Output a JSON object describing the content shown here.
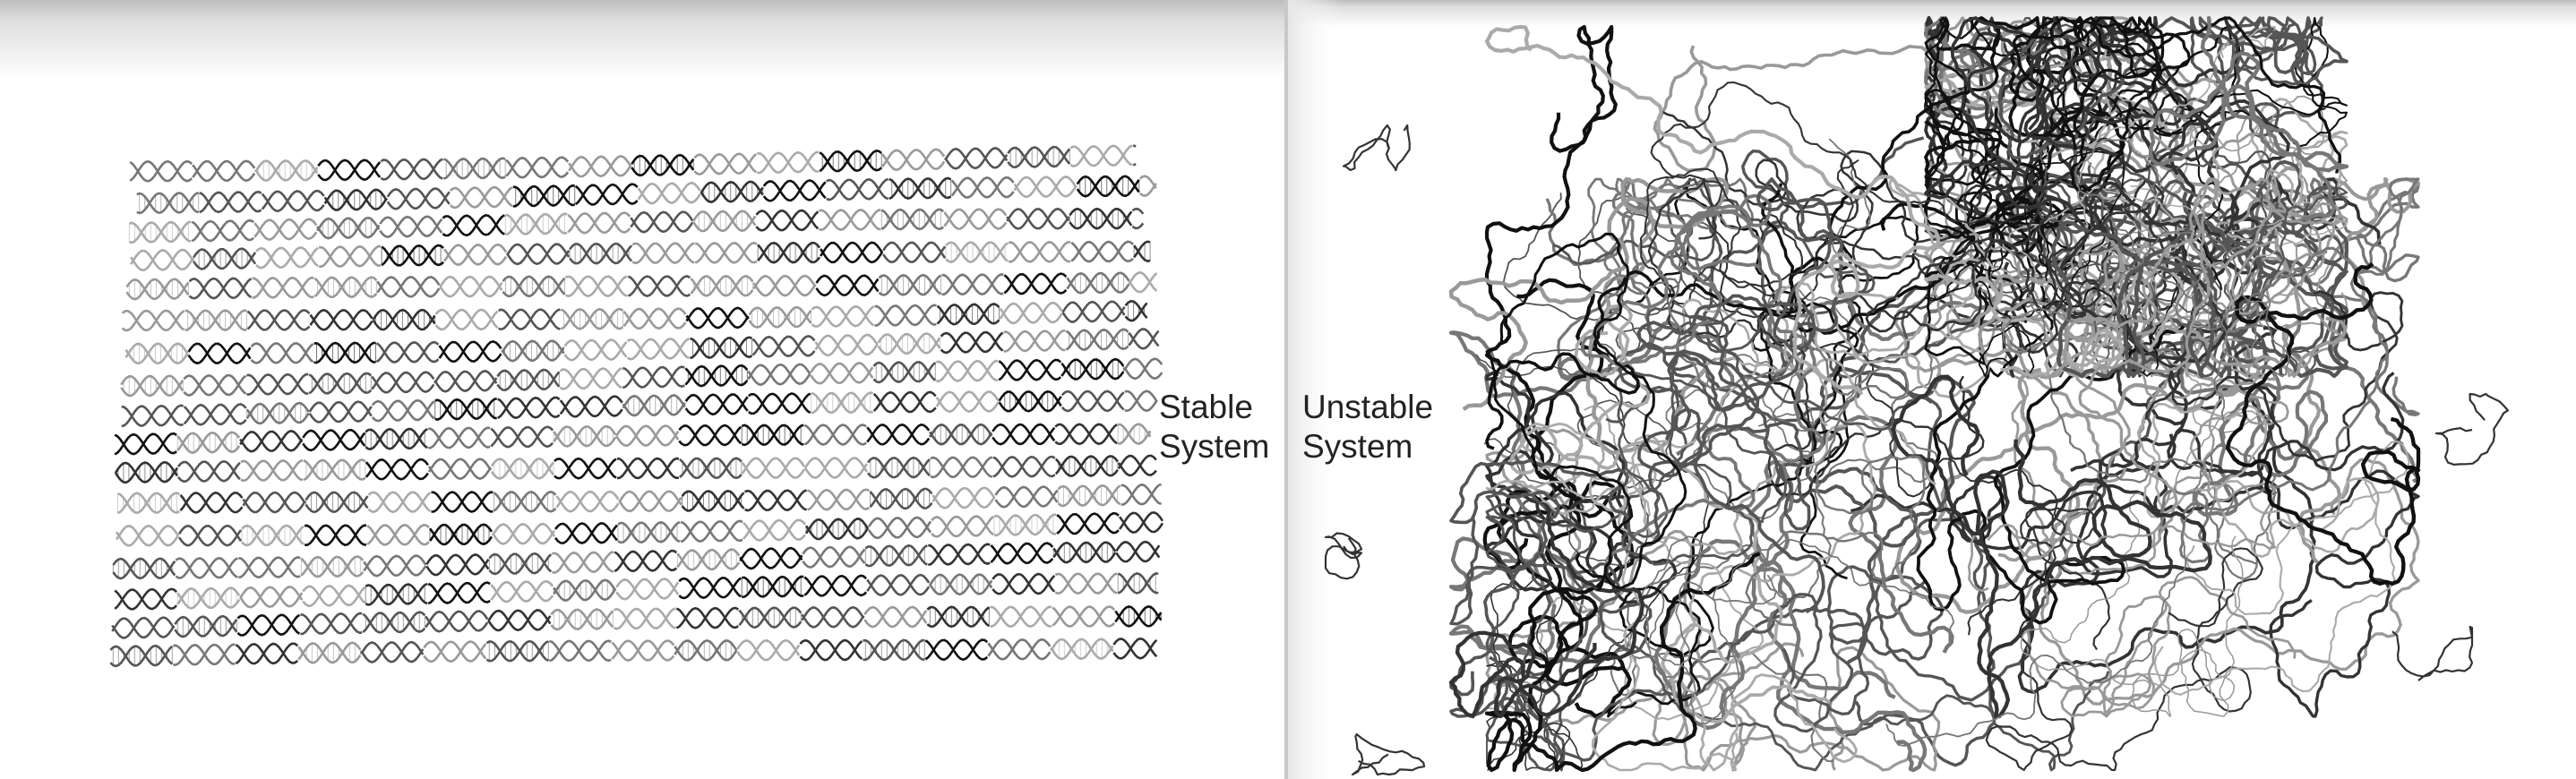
{
  "panels": [
    {
      "label_lines": [
        "Stable",
        "System"
      ]
    },
    {
      "label_lines": [
        "Unstable",
        "System"
      ]
    }
  ]
}
